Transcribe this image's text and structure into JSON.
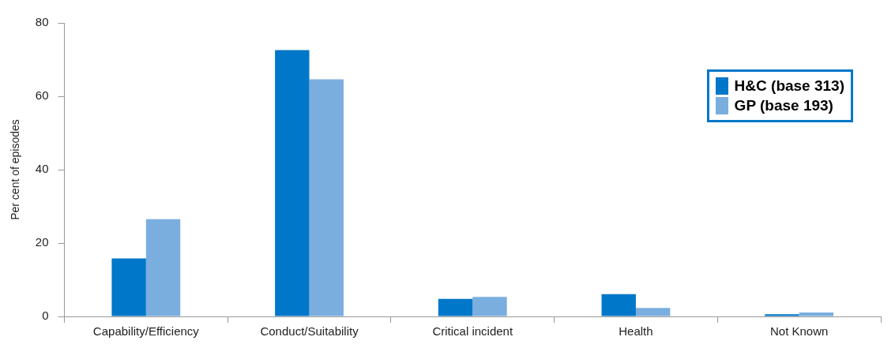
{
  "chart_data": {
    "type": "bar",
    "ylabel": "Per cent of episodes",
    "categories": [
      "Capability/Efficiency",
      "Conduct/Suitability",
      "Critical incident",
      "Health",
      "Not Known"
    ],
    "series": [
      {
        "name": "H&C (base 313)",
        "color": "#0077c8",
        "values": [
          15.8,
          72.6,
          4.8,
          6.1,
          0.6
        ]
      },
      {
        "name": "GP (base 193)",
        "color": "#7aaedf",
        "values": [
          26.5,
          64.6,
          5.3,
          2.3,
          1.1
        ]
      }
    ],
    "ylim": [
      0,
      80
    ],
    "yticks": [
      0,
      20,
      40,
      60,
      80
    ],
    "grid": false,
    "legend": "top right"
  }
}
